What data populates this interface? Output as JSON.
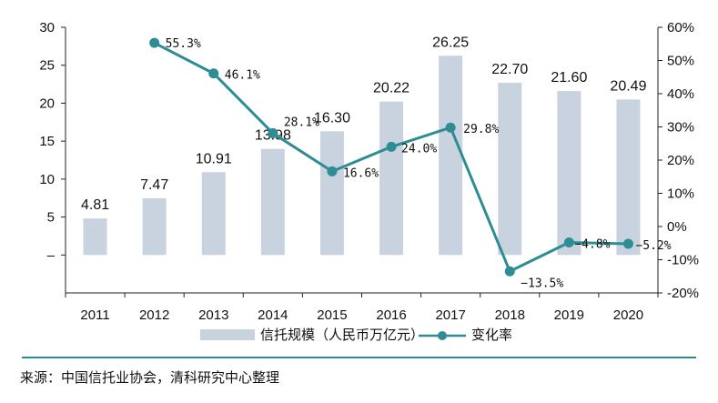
{
  "chart_data": {
    "type": "bar+line",
    "categories": [
      "2011",
      "2012",
      "2013",
      "2014",
      "2015",
      "2016",
      "2017",
      "2018",
      "2019",
      "2020"
    ],
    "series": [
      {
        "name": "信托规模（人民币万亿元）",
        "type": "bar",
        "axis": "left",
        "color": "#c9d3df",
        "values": [
          4.81,
          7.47,
          10.91,
          13.98,
          16.3,
          20.22,
          26.25,
          22.7,
          21.6,
          20.49
        ],
        "labels": [
          "4.81",
          "7.47",
          "10.91",
          "13.98",
          "16.30",
          "20.22",
          "26.25",
          "22.70",
          "21.60",
          "20.49"
        ]
      },
      {
        "name": "变化率",
        "type": "line",
        "axis": "right",
        "color": "#2e8d94",
        "values": [
          null,
          55.3,
          46.1,
          28.1,
          16.6,
          24.0,
          29.8,
          -13.5,
          -4.8,
          -5.2
        ],
        "labels": [
          null,
          "55.3%",
          "46.1%",
          "28.1%",
          "16.6%",
          "24.0%",
          "29.8%",
          "−13.5%",
          "−4.8%",
          "−5.2%"
        ]
      }
    ],
    "left_axis": {
      "ylim": [
        -5,
        30
      ],
      "ticks": [
        "–",
        "5",
        "10",
        "15",
        "20",
        "25",
        "30"
      ],
      "tick_values": [
        0,
        5,
        10,
        15,
        20,
        25,
        30
      ]
    },
    "right_axis": {
      "ylim": [
        -20,
        60
      ],
      "ticks": [
        "-20%",
        "-10%",
        "0%",
        "10%",
        "20%",
        "30%",
        "40%",
        "50%",
        "60%"
      ],
      "tick_values": [
        -20,
        -10,
        0,
        10,
        20,
        30,
        40,
        50,
        60
      ]
    },
    "legend_position": "bottom-center",
    "grid": false
  },
  "source": "来源：中国信托业协会，清科研究中心整理"
}
